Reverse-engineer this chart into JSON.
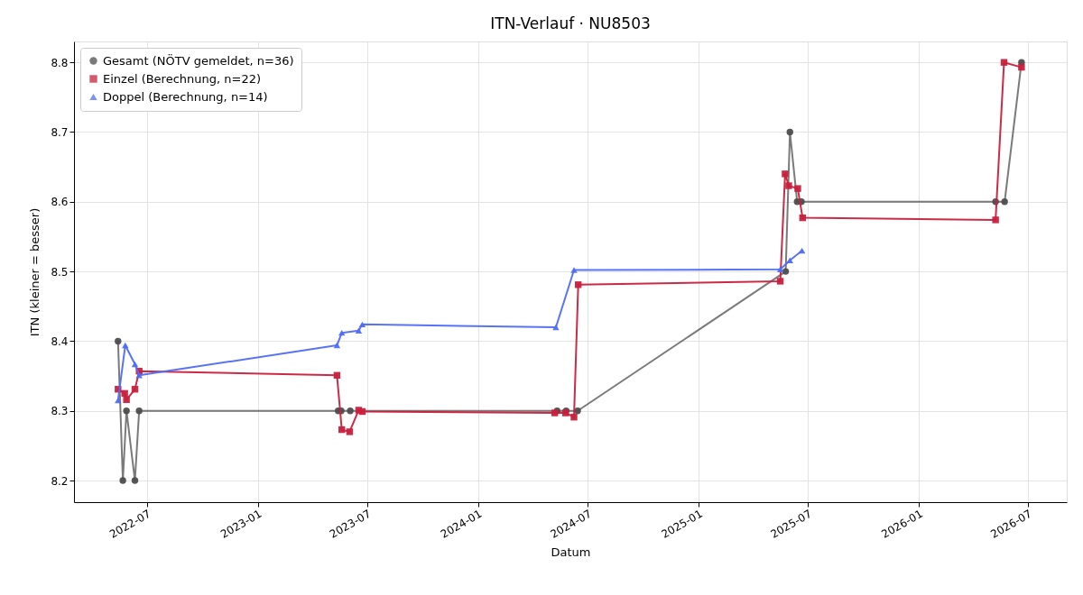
{
  "chart_data": {
    "type": "line",
    "title": "ITN-Verlauf · NU8503",
    "xlabel": "Datum",
    "ylabel": "ITN  (kleiner = besser)",
    "xlim": [
      "2022-03-02",
      "2026-09-03"
    ],
    "xticks": [
      "2022-07",
      "2023-01",
      "2023-07",
      "2024-01",
      "2024-07",
      "2025-01",
      "2025-07",
      "2026-01",
      "2026-07"
    ],
    "ylim": [
      8.169,
      8.83
    ],
    "yticks": [
      8.2,
      8.3,
      8.4,
      8.5,
      8.6,
      8.7,
      8.8
    ],
    "grid": true,
    "legend": "top left",
    "series": [
      {
        "name": "Gesamt (NÖTV gemeldet, n=36)",
        "color": "#4d4d4d",
        "marker": "circle",
        "x": [
          "2022-05-14",
          "2022-05-22",
          "2022-05-28",
          "2022-06-11",
          "2022-06-18",
          "2023-05-14",
          "2023-05-19",
          "2023-06-03",
          "2024-05-11",
          "2024-05-26",
          "2024-06-14",
          "2025-05-25",
          "2025-06-01",
          "2025-06-13",
          "2025-06-20",
          "2026-05-08",
          "2026-05-23",
          "2026-06-20"
        ],
        "values": [
          8.4,
          8.2,
          8.3,
          8.2,
          8.3,
          8.3,
          8.3,
          8.3,
          8.3,
          8.3,
          8.3,
          8.5,
          8.7,
          8.6,
          8.6,
          8.6,
          8.6,
          8.8
        ]
      },
      {
        "name": "Einzel (Berechnung, n=22)",
        "color": "#c8203c",
        "marker": "square",
        "x": [
          "2022-05-14",
          "2022-05-25",
          "2022-05-28",
          "2022-06-11",
          "2022-06-18",
          "2023-05-12",
          "2023-05-20",
          "2023-06-02",
          "2023-06-17",
          "2023-06-23",
          "2024-05-07",
          "2024-05-25",
          "2024-06-08",
          "2024-06-15",
          "2025-05-16",
          "2025-05-24",
          "2025-05-30",
          "2025-06-14",
          "2025-06-22",
          "2026-05-08",
          "2026-05-22",
          "2026-06-20"
        ],
        "values": [
          8.331,
          8.325,
          8.316,
          8.331,
          8.357,
          8.351,
          8.273,
          8.27,
          8.301,
          8.299,
          8.297,
          8.297,
          8.291,
          8.481,
          8.486,
          8.64,
          8.623,
          8.619,
          8.577,
          8.574,
          8.8,
          8.793
        ]
      },
      {
        "name": "Doppel (Berechnung, n=14)",
        "color": "#4f6df5",
        "marker": "triangle",
        "x": [
          "2022-05-14",
          "2022-05-26",
          "2022-06-11",
          "2022-06-18",
          "2023-05-12",
          "2023-05-20",
          "2023-06-17",
          "2023-06-23",
          "2024-05-09",
          "2024-06-08",
          "2025-05-16",
          "2025-06-01",
          "2025-06-21"
        ],
        "values": [
          8.315,
          8.394,
          8.367,
          8.351,
          8.394,
          8.412,
          8.415,
          8.424,
          8.42,
          8.502,
          8.503,
          8.516,
          8.53
        ]
      }
    ]
  }
}
